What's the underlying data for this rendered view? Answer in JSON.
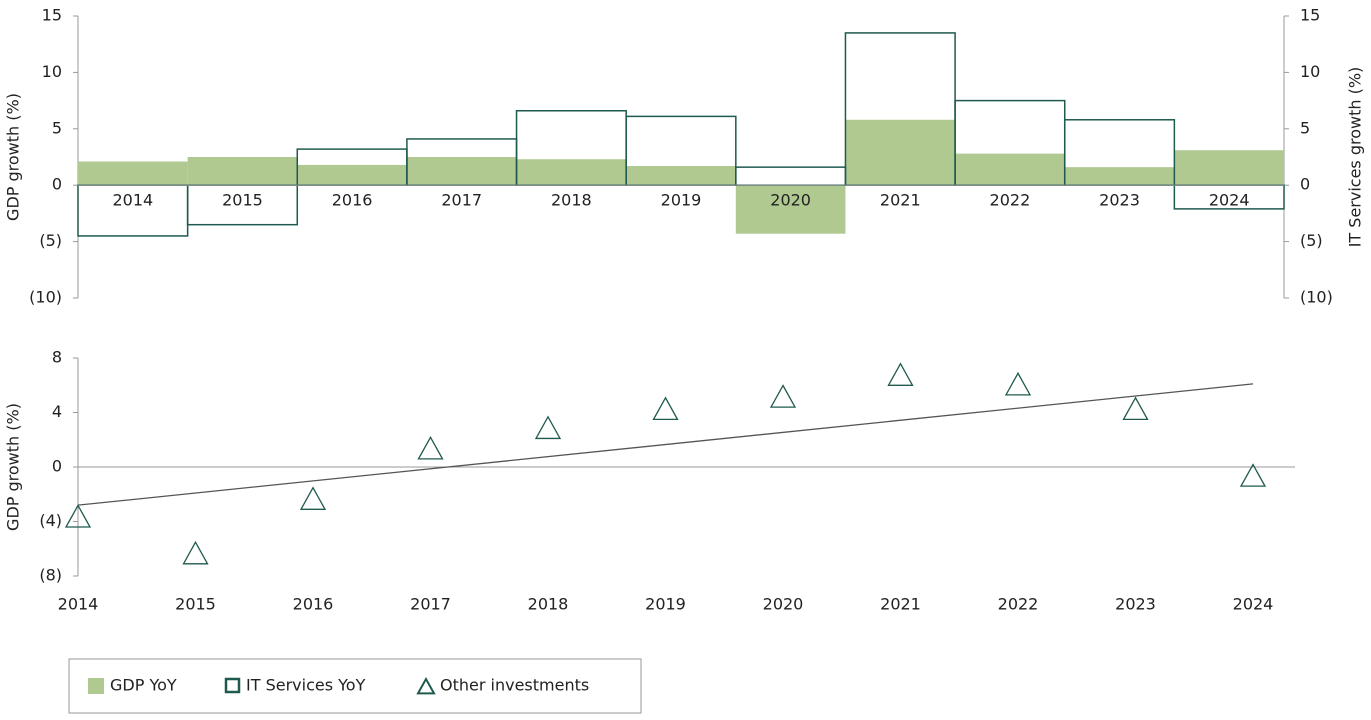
{
  "chart_data": [
    {
      "type": "bar",
      "y_label": "GDP growth (%)",
      "y2_label": "IT Services growth (%)",
      "categories": [
        "2014",
        "2015",
        "2016",
        "2017",
        "2018",
        "2019",
        "2020",
        "2021",
        "2022",
        "2023",
        "2024"
      ],
      "series": [
        {
          "name": "GDP YoY",
          "color": "#afc991",
          "style": "filled",
          "values": [
            2.1,
            2.5,
            1.8,
            2.5,
            2.3,
            1.7,
            -4.3,
            5.8,
            2.8,
            1.6,
            3.1
          ]
        },
        {
          "name": "IT Services YoY",
          "color": "#1f5a4f",
          "style": "outline",
          "axis": "y2",
          "values": [
            -4.5,
            -3.5,
            3.2,
            4.1,
            6.6,
            6.1,
            1.6,
            13.5,
            7.5,
            5.8,
            -2.1
          ]
        }
      ],
      "ylim": [
        -10,
        15
      ],
      "yticks": [
        {
          "value": -10,
          "label": "(10)"
        },
        {
          "value": -5,
          "label": "(5)"
        },
        0,
        5,
        10,
        15
      ],
      "y2lim": [
        -10,
        15
      ],
      "y2ticks": [
        {
          "value": -10,
          "label": "(10)"
        },
        {
          "value": -5,
          "label": "(5)"
        },
        0,
        5,
        10,
        15
      ]
    },
    {
      "type": "scatter",
      "y_label": "GDP growth (%)",
      "categories": [
        "2014",
        "2015",
        "2016",
        "2017",
        "2018",
        "2019",
        "2020",
        "2021",
        "2022",
        "2023",
        "2024"
      ],
      "series": [
        {
          "name": "Other investments",
          "color": "#1f5a4f",
          "marker": "triangle",
          "values": [
            -3.7,
            -6.4,
            -2.4,
            1.3,
            2.8,
            4.2,
            5.1,
            6.7,
            6.0,
            4.2,
            -0.7
          ]
        }
      ],
      "trend": {
        "color": "#555555",
        "values": [
          -2.8,
          6.1
        ]
      },
      "ylim": [
        -8,
        8
      ],
      "yticks": [
        {
          "value": -8,
          "label": "(8)"
        },
        {
          "value": -4,
          "label": "(4)"
        },
        0,
        4,
        8
      ]
    }
  ]
}
